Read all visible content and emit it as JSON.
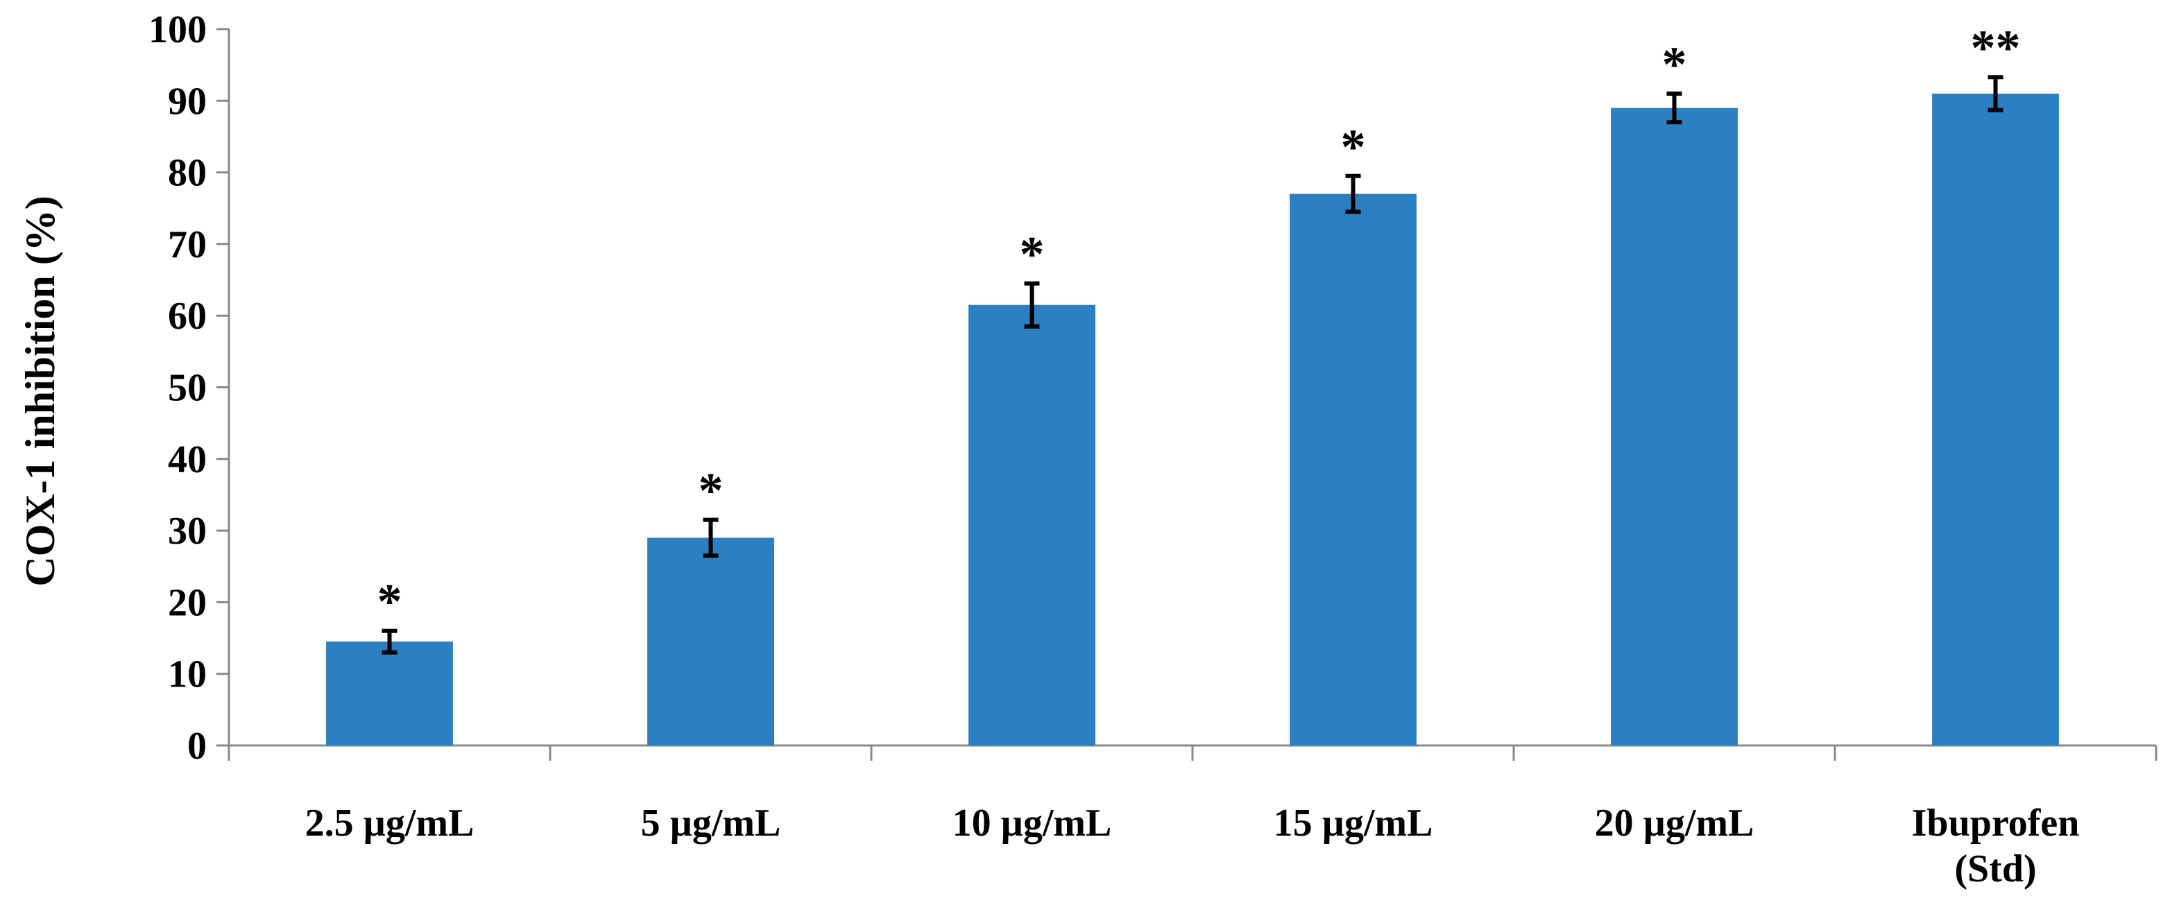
{
  "chart_data": {
    "type": "bar",
    "title": "",
    "xlabel": "",
    "ylabel": "COX-1 inhibition (%)",
    "ylim": [
      0,
      100
    ],
    "yticks": [
      0,
      10,
      20,
      30,
      40,
      50,
      60,
      70,
      80,
      90,
      100
    ],
    "ytick_labels": [
      "0",
      "10",
      "20",
      "30",
      "40",
      "50",
      "60",
      "70",
      "80",
      "90",
      "100"
    ],
    "categories": [
      [
        "2.5 µg/mL"
      ],
      [
        "5 µg/mL"
      ],
      [
        "10 µg/mL"
      ],
      [
        "15 µg/mL"
      ],
      [
        "20 µg/mL"
      ],
      [
        "Ibuprofen",
        "(Std)"
      ]
    ],
    "values": [
      14.5,
      29,
      61.5,
      77,
      89,
      91
    ],
    "errors": [
      1.5,
      2.5,
      3,
      2.5,
      2,
      2.3
    ],
    "annotations": [
      "*",
      "*",
      "*",
      "*",
      "*",
      "**"
    ],
    "grid": false,
    "legend": "none",
    "colors": {
      "bar": "#2A80C2",
      "axis": "#888888",
      "text": "#000000"
    }
  }
}
